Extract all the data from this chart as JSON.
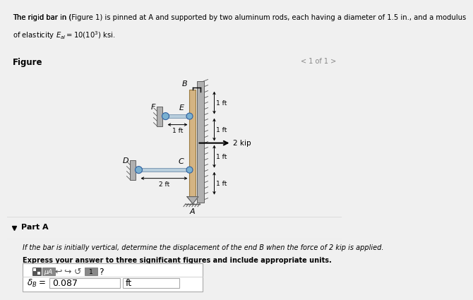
{
  "header_bg": "#d6eaf8",
  "header_line1": "The rigid bar in (Figure 1) is pinned at A and supported by two aluminum rods, each having a diameter of 1.5 in., and a modulus",
  "header_line2": "of elasticity $E_{al} = 10(10^3)$ ksi.",
  "figure_label": "Figure",
  "page_indicator": "< 1 of 1 >",
  "part_label": "▼  Part A",
  "part_question": "If the bar is initially vertical, determine the displacement of the end B when the force of 2 kip is applied.",
  "part_bold": "Express your answer to three significant figures and include appropriate units.",
  "answer_label": "$\\delta_B$ =",
  "answer_value": "0.087",
  "answer_unit": "ft",
  "bar_color": "#d4b483",
  "rod_color": "#a8c4d4",
  "wall_color": "#999999",
  "pin_color": "#6baed6",
  "bg_color": "#ffffff",
  "page_bg": "#f0f0f0",
  "scale": 1.0
}
